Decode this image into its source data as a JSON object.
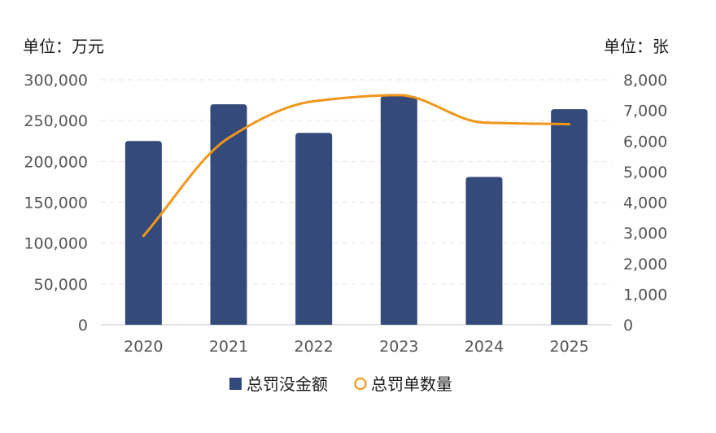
{
  "chart_data": {
    "type": "bar",
    "categories": [
      "2020",
      "2021",
      "2022",
      "2023",
      "2024",
      "2025"
    ],
    "left_axis": {
      "unit_label": "单位：万元",
      "range": [
        0,
        300000
      ],
      "ticks": [
        "0",
        "50,000",
        "100,000",
        "150,000",
        "200,000",
        "250,000",
        "300,000"
      ]
    },
    "right_axis": {
      "unit_label": "单位：张",
      "range": [
        0,
        8000
      ],
      "ticks": [
        "0",
        "1,000",
        "2,000",
        "3,000",
        "4,000",
        "5,000",
        "6,000",
        "7,000",
        "8,000"
      ]
    },
    "series": [
      {
        "name": "总罚没金额",
        "type": "bar",
        "axis": "left",
        "color": "#344a7a",
        "values": [
          225000,
          270000,
          235000,
          280000,
          181000,
          264000
        ]
      },
      {
        "name": "总罚单数量",
        "type": "line",
        "axis": "right",
        "color": "#f0971b",
        "smooth": true,
        "values": [
          2900,
          6100,
          7300,
          7500,
          6600,
          6550
        ]
      }
    ],
    "grid": "horizontal-dashed",
    "legend_position": "bottom-center"
  }
}
